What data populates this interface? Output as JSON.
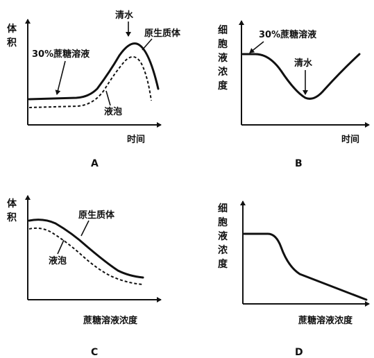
{
  "panels": {
    "A": {
      "label": "A",
      "ylabel": [
        "体",
        "积"
      ],
      "xlabel": "时间",
      "ann_sucrose": "30%蔗糖溶液",
      "ann_water": "清水",
      "ann_protoplast": "原生质体",
      "ann_vacuole": "液泡"
    },
    "B": {
      "label": "B",
      "ylabel": [
        "细",
        "胞",
        "液",
        "浓",
        "度"
      ],
      "xlabel": "时间",
      "ann_sucrose": "30%蔗糖溶液",
      "ann_water": "清水"
    },
    "C": {
      "label": "C",
      "ylabel": [
        "体",
        "积"
      ],
      "xlabel": "蔗糖溶液浓度",
      "ann_protoplast": "原生质体",
      "ann_vacuole": "液泡"
    },
    "D": {
      "label": "D",
      "ylabel": [
        "细",
        "胞",
        "液",
        "浓",
        "度"
      ],
      "xlabel": "蔗糖溶液浓度"
    }
  }
}
